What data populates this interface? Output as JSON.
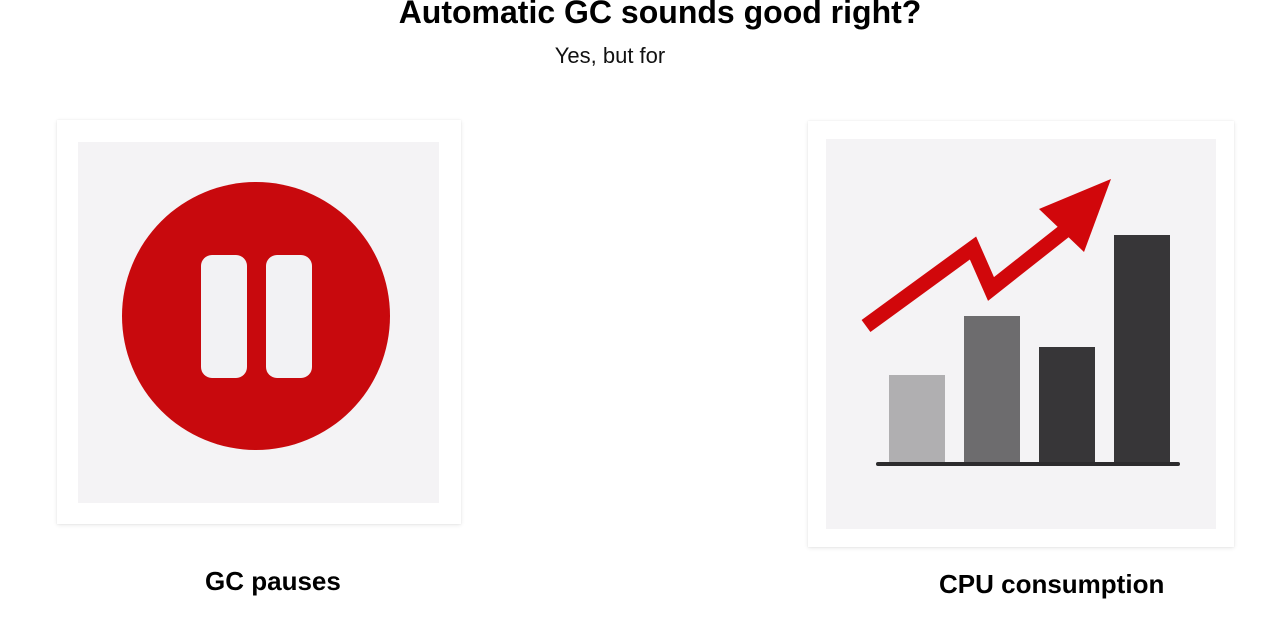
{
  "slide": {
    "title": "Automatic GC sounds good right?",
    "subtitle": "Yes, but for"
  },
  "items": [
    {
      "caption": "GC pauses",
      "icon": "pause-icon",
      "colors": {
        "circle": "#c8090d",
        "bars": "#f2f2f4"
      }
    },
    {
      "caption": "CPU consumption",
      "icon": "rising-bar-chart-icon",
      "colors": {
        "arrow": "#d1070b",
        "bars": [
          "#b0afb1",
          "#6d6c6e",
          "#373638",
          "#373638"
        ],
        "baseline": "#2c2b2d"
      }
    }
  ]
}
